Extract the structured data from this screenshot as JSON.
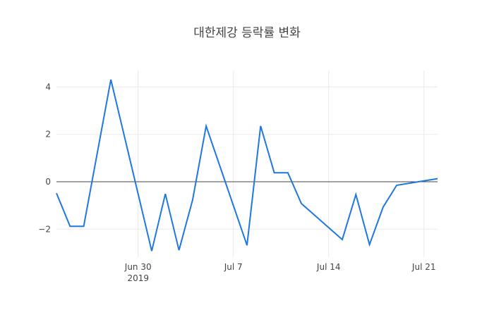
{
  "chart_data": {
    "type": "line",
    "title": "대한제강 등락률 변화",
    "xlabel": "",
    "ylabel": "",
    "x": [
      "2019-06-24",
      "2019-06-25",
      "2019-06-26",
      "2019-06-28",
      "2019-07-01",
      "2019-07-02",
      "2019-07-03",
      "2019-07-04",
      "2019-07-05",
      "2019-07-08",
      "2019-07-09",
      "2019-07-10",
      "2019-07-11",
      "2019-07-12",
      "2019-07-15",
      "2019-07-16",
      "2019-07-17",
      "2019-07-18",
      "2019-07-19",
      "2019-07-22"
    ],
    "series": [
      {
        "name": "등락률",
        "color": "#1f77e0",
        "values": [
          -0.48,
          -1.88,
          -1.88,
          4.31,
          -2.92,
          -0.51,
          -2.89,
          -0.77,
          2.35,
          -2.68,
          2.35,
          0.38,
          0.38,
          -0.92,
          -2.44,
          -0.54,
          -2.65,
          -1.07,
          -0.15,
          0.13
        ]
      }
    ],
    "x_ticks": [
      {
        "date": "2019-06-30",
        "label": "Jun 30",
        "sublabel": "2019"
      },
      {
        "date": "2019-07-07",
        "label": "Jul 7",
        "sublabel": ""
      },
      {
        "date": "2019-07-14",
        "label": "Jul 14",
        "sublabel": ""
      },
      {
        "date": "2019-07-21",
        "label": "Jul 21",
        "sublabel": ""
      }
    ],
    "y_ticks": [
      {
        "value": 4,
        "label": "4"
      },
      {
        "value": 2,
        "label": "2"
      },
      {
        "value": 0,
        "label": "0"
      },
      {
        "value": -2,
        "label": "−2"
      }
    ],
    "ylim": [
      -3.1,
      4.7
    ],
    "xlim": [
      "2019-06-24",
      "2019-07-22"
    ],
    "grid": true,
    "zero_line": true,
    "legend": "none"
  },
  "colors": {
    "line": "#1f77e0",
    "grid": "#ebebeb",
    "zero_line": "#444444",
    "text": "#444444"
  }
}
